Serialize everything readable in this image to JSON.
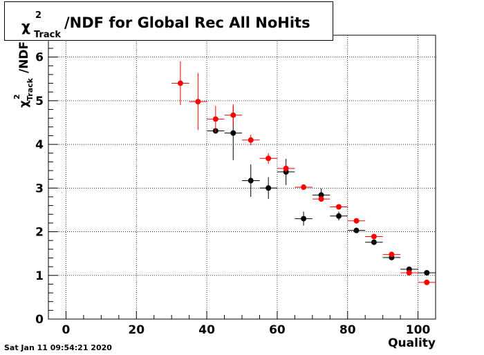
{
  "chart_data": {
    "type": "scatter",
    "title": {
      "chi": "χ",
      "sup": "2",
      "sub": "Track",
      "rest": "/NDF for Global Rec All NoHits"
    },
    "xlabel": "Quality",
    "ylabel": {
      "chi": "χ",
      "sup": "2",
      "sub": "Track",
      "rest": "/NDF"
    },
    "xlim": [
      -5,
      105
    ],
    "ylim": [
      0,
      6.5
    ],
    "x_ticks": [
      0,
      20,
      40,
      60,
      80,
      100
    ],
    "y_ticks": [
      0,
      1,
      2,
      3,
      4,
      5,
      6
    ],
    "grid": true,
    "series": [
      {
        "color": "#000000",
        "points": [
          {
            "x": 42.5,
            "y": 4.31,
            "err": 0.0
          },
          {
            "x": 47.5,
            "y": 4.26,
            "err": 0.62
          },
          {
            "x": 52.5,
            "y": 3.17,
            "err": 0.37
          },
          {
            "x": 57.5,
            "y": 3.0,
            "err": 0.25
          },
          {
            "x": 62.5,
            "y": 3.37,
            "err": 0.3
          },
          {
            "x": 67.5,
            "y": 2.3,
            "err": 0.16
          },
          {
            "x": 72.5,
            "y": 2.84,
            "err": 0.15
          },
          {
            "x": 77.5,
            "y": 2.36,
            "err": 0.1
          },
          {
            "x": 82.5,
            "y": 2.03,
            "err": 0.06
          },
          {
            "x": 87.5,
            "y": 1.76,
            "err": 0.04
          },
          {
            "x": 92.5,
            "y": 1.41,
            "err": 0.03
          },
          {
            "x": 97.5,
            "y": 1.14,
            "err": 0.02
          },
          {
            "x": 102.5,
            "y": 1.06,
            "err": 0.02
          }
        ]
      },
      {
        "color": "#ff0000",
        "points": [
          {
            "x": 32.5,
            "y": 5.4,
            "err": 0.5
          },
          {
            "x": 37.5,
            "y": 4.98,
            "err": 0.65
          },
          {
            "x": 42.5,
            "y": 4.58,
            "err": 0.3
          },
          {
            "x": 47.5,
            "y": 4.67,
            "err": 0.25
          },
          {
            "x": 52.5,
            "y": 4.1,
            "err": 0.12
          },
          {
            "x": 57.5,
            "y": 3.68,
            "err": 0.12
          },
          {
            "x": 62.5,
            "y": 3.45,
            "err": 0.09
          },
          {
            "x": 67.5,
            "y": 3.02,
            "err": 0.04
          },
          {
            "x": 72.5,
            "y": 2.75,
            "err": 0.05
          },
          {
            "x": 77.5,
            "y": 2.57,
            "err": 0.04
          },
          {
            "x": 82.5,
            "y": 2.25,
            "err": 0.03
          },
          {
            "x": 87.5,
            "y": 1.89,
            "err": 0.02
          },
          {
            "x": 92.5,
            "y": 1.48,
            "err": 0.02
          },
          {
            "x": 97.5,
            "y": 1.06,
            "err": 0.02
          },
          {
            "x": 102.5,
            "y": 0.84,
            "err": 0.02
          }
        ]
      }
    ]
  },
  "footer": {
    "timestamp": "Sat Jan 11 09:54:21 2020"
  }
}
